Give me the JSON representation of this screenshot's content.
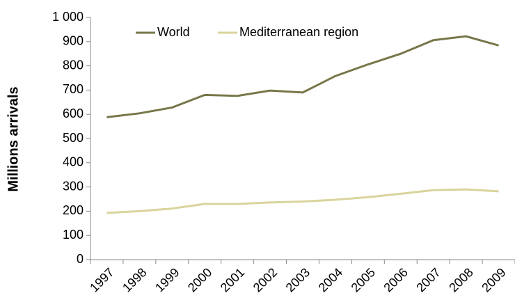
{
  "chart_data": {
    "type": "line",
    "y_label": "Millions arrivals",
    "categories": [
      "1997",
      "1998",
      "1999",
      "2000",
      "2001",
      "2002",
      "2003",
      "2004",
      "2005",
      "2006",
      "2007",
      "2008",
      "2009"
    ],
    "series": [
      {
        "name": "World",
        "color": "#77774a",
        "values": [
          588,
          604,
          628,
          680,
          676,
          698,
          690,
          758,
          806,
          850,
          906,
          922,
          884
        ]
      },
      {
        "name": "Mediterranean region",
        "color": "#d9d49b",
        "values": [
          193,
          200,
          211,
          230,
          230,
          236,
          240,
          247,
          258,
          272,
          287,
          290,
          282
        ]
      }
    ],
    "ylim": [
      0,
      1000
    ],
    "yticks": [
      0,
      100,
      200,
      300,
      400,
      500,
      600,
      700,
      800,
      900,
      {
        "value": 1000,
        "label": "1 000"
      }
    ],
    "grid": false,
    "legend": "top"
  }
}
